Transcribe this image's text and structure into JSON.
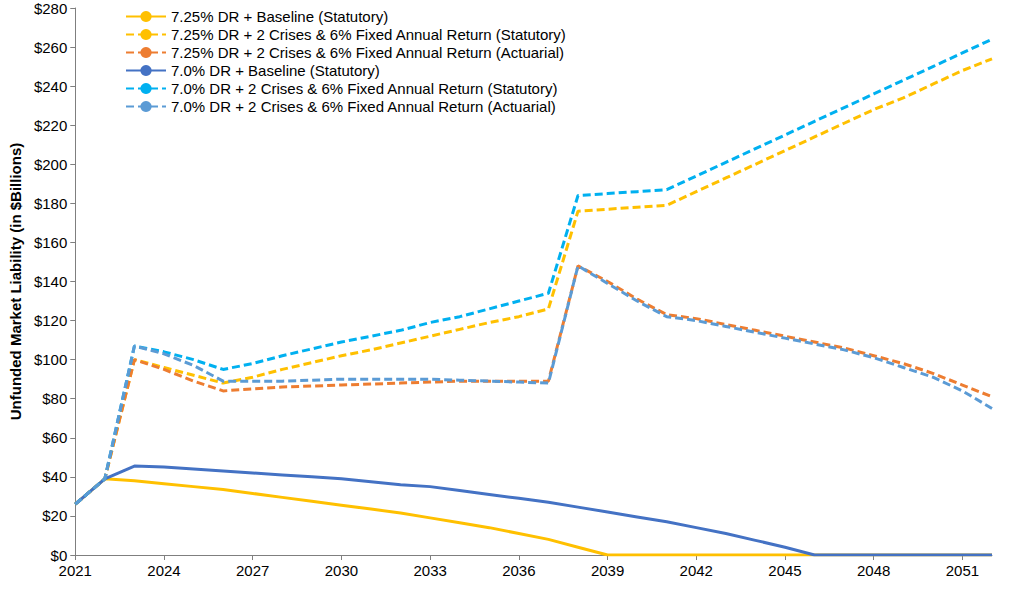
{
  "chart_data": {
    "type": "line",
    "y_label": "Unfunded Market Liability (in $Billions)",
    "x": [
      2021,
      2022,
      2023,
      2024,
      2025,
      2026,
      2027,
      2028,
      2029,
      2030,
      2031,
      2032,
      2033,
      2034,
      2035,
      2036,
      2037,
      2038,
      2039,
      2040,
      2041,
      2042,
      2043,
      2044,
      2045,
      2046,
      2047,
      2048,
      2049,
      2050,
      2051,
      2052
    ],
    "xlim": [
      2021,
      2052
    ],
    "xticks": [
      2021,
      2024,
      2027,
      2030,
      2033,
      2036,
      2039,
      2042,
      2045,
      2048,
      2051
    ],
    "ylim": [
      0,
      280
    ],
    "yticks": [
      {
        "value": 0,
        "label": "$0"
      },
      {
        "value": 20,
        "label": "$20"
      },
      {
        "value": 40,
        "label": "$40"
      },
      {
        "value": 60,
        "label": "$60"
      },
      {
        "value": 80,
        "label": "$80"
      },
      {
        "value": 100,
        "label": "$100"
      },
      {
        "value": 120,
        "label": "$120"
      },
      {
        "value": 140,
        "label": "$140"
      },
      {
        "value": 160,
        "label": "$160"
      },
      {
        "value": 180,
        "label": "$180"
      },
      {
        "value": 200,
        "label": "$200"
      },
      {
        "value": 220,
        "label": "$220"
      },
      {
        "value": 240,
        "label": "$240"
      },
      {
        "value": 260,
        "label": "$260"
      },
      {
        "value": 280,
        "label": "$280"
      }
    ],
    "grid": false,
    "legend": "upper left",
    "series": [
      {
        "name": "7.25% DR + Baseline (Statutory)",
        "color": "#FFC000",
        "line_style": "solid",
        "values": [
          26,
          39,
          38,
          36.5,
          35,
          33.5,
          31.5,
          29.5,
          27.5,
          25.5,
          23.5,
          21.5,
          19,
          16.5,
          14,
          11,
          8,
          4,
          0,
          0,
          0,
          0,
          0,
          0,
          0,
          0,
          0,
          0,
          0,
          0,
          0,
          0
        ]
      },
      {
        "name": "7.25% DR + 2 Crises & 6% Fixed Annual Return (Statutory)",
        "color": "#FFC000",
        "line_style": "dashed",
        "values": [
          26,
          39,
          100,
          96,
          92,
          88,
          91,
          95,
          98.5,
          102,
          105,
          108.5,
          112,
          115.5,
          119,
          122,
          126,
          176,
          177,
          178,
          179,
          186,
          193,
          200,
          207,
          214,
          221,
          228,
          234,
          241,
          248,
          254
        ]
      },
      {
        "name": "7.25% DR + 2 Crises & 6% Fixed Annual Return (Actuarial)",
        "color": "#ED7D31",
        "line_style": "dashed",
        "values": [
          26,
          39,
          100,
          95,
          89,
          84,
          85,
          86,
          86.5,
          87,
          87.5,
          88,
          88.5,
          89,
          89,
          89,
          89,
          148,
          140,
          131,
          123,
          121,
          118,
          115,
          112,
          109,
          106,
          102,
          98,
          93,
          87,
          81
        ]
      },
      {
        "name": "7.0% DR + Baseline (Statutory)",
        "color": "#4472C4",
        "line_style": "solid",
        "values": [
          26,
          39,
          45.5,
          45,
          44,
          43,
          42,
          41,
          40,
          39,
          37.5,
          36,
          35,
          33,
          31,
          29,
          27,
          24.5,
          22,
          19.5,
          17,
          14,
          11,
          7.5,
          4,
          0,
          0,
          0,
          0,
          0,
          0,
          0
        ]
      },
      {
        "name": "7.0% DR + 2 Crises & 6% Fixed Annual Return (Statutory)",
        "color": "#00B0F0",
        "line_style": "dashed",
        "values": [
          26,
          39,
          107,
          104,
          100,
          95,
          98,
          102,
          105.5,
          109,
          112,
          115,
          119,
          122,
          126,
          130,
          134,
          184,
          185,
          186,
          187,
          194,
          201,
          208,
          215,
          222,
          229,
          236,
          243,
          250,
          257,
          264
        ]
      },
      {
        "name": "7.0% DR + 2 Crises & 6% Fixed Annual Return (Actuarial)",
        "color": "#5B9BD5",
        "line_style": "dashed",
        "values": [
          26,
          39,
          107,
          103,
          97,
          89,
          89,
          89,
          89.5,
          90,
          90,
          90,
          90,
          89.5,
          89,
          88.5,
          88,
          148,
          139,
          130,
          122,
          120,
          117,
          114,
          111,
          108,
          105,
          101,
          96,
          91,
          84,
          75
        ]
      }
    ]
  }
}
